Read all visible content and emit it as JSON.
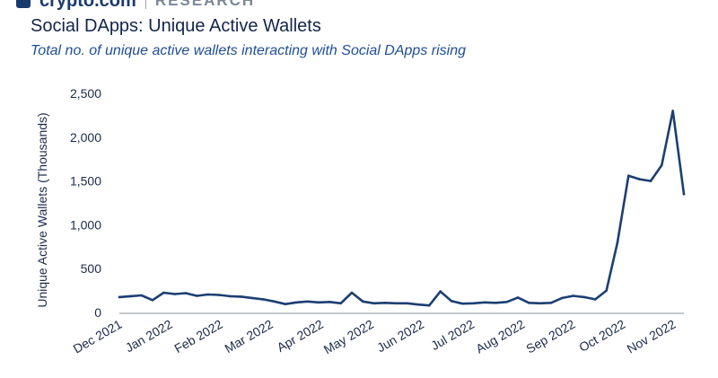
{
  "brand": {
    "name": "crypto.com",
    "sub": "RESEARCH"
  },
  "chart_data": {
    "type": "line",
    "title": "Social DApps: Unique Active Wallets",
    "subtitle": "Total no. of unique active wallets interacting with Social DApps rising",
    "ylabel": "Unique Active Wallets (Thousands)",
    "xlabel": "",
    "ylim": [
      0,
      2500
    ],
    "yticks": [
      0,
      500,
      1000,
      1500,
      2000,
      2500
    ],
    "ytick_labels": [
      "0",
      "500",
      "1,000",
      "1,500",
      "2,000",
      "2,500"
    ],
    "xtick_labels": [
      "Dec 2021",
      "Jan 2022",
      "Feb 2022",
      "Mar 2022",
      "Apr 2022",
      "May 2022",
      "Jun 2022",
      "Jul 2022",
      "Aug 2022",
      "Sep 2022",
      "Oct 2022",
      "Nov 2022"
    ],
    "legend": "none",
    "grid": false,
    "color": "#1c3f72",
    "series": [
      {
        "values": [
          175,
          185,
          195,
          140,
          225,
          210,
          220,
          190,
          205,
          200,
          185,
          180,
          165,
          150,
          125,
          95,
          115,
          125,
          115,
          120,
          105,
          225,
          125,
          105,
          110,
          105,
          105,
          90,
          80,
          240,
          130,
          100,
          105,
          115,
          110,
          120,
          170,
          110,
          105,
          110,
          165,
          190,
          175,
          150,
          250,
          800,
          1560,
          1520,
          1500,
          1680,
          2300,
          1350
        ]
      }
    ]
  }
}
